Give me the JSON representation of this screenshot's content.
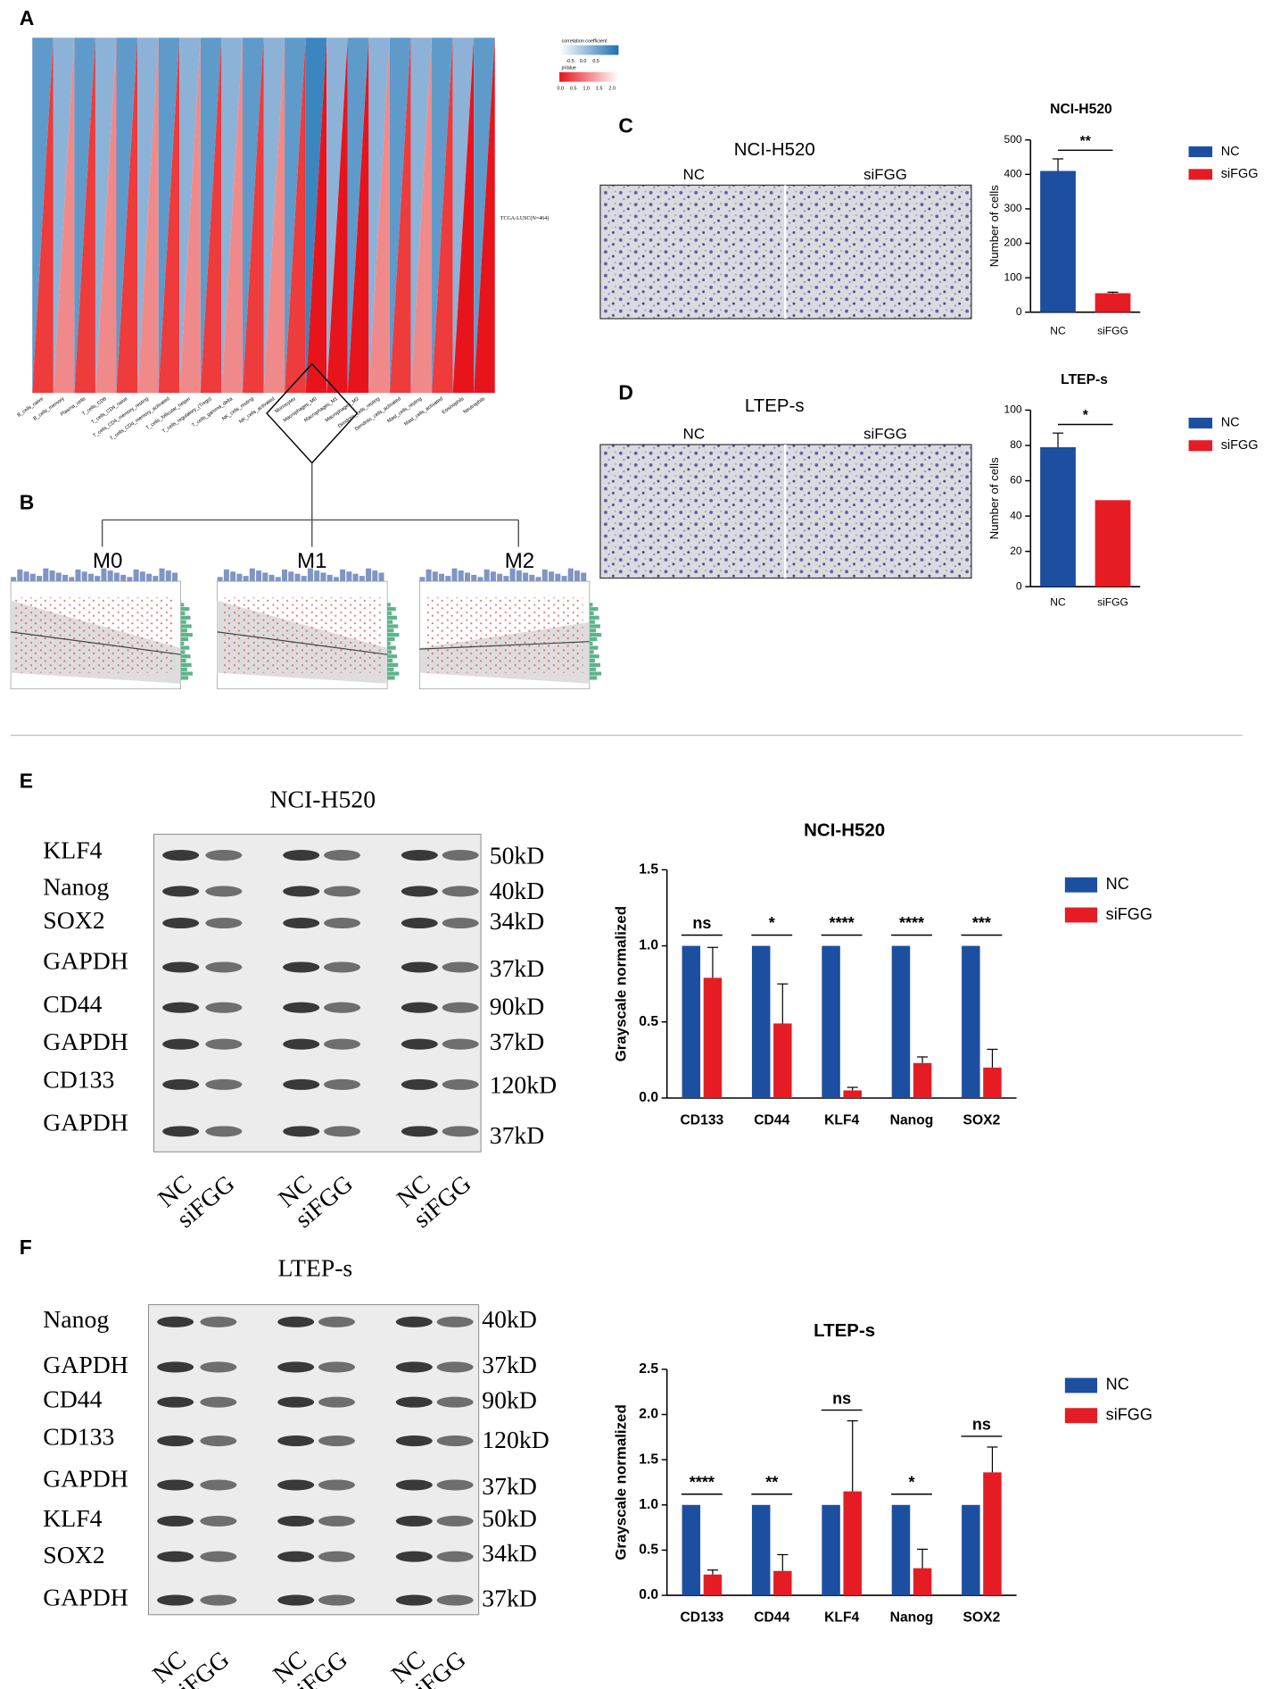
{
  "panel_labels": [
    "A",
    "B",
    "C",
    "D",
    "E",
    "F"
  ],
  "heatmap": {
    "cells": [
      "B_cells_naive",
      "B_cells_memory",
      "Plasma_cells",
      "T_cells_CD8",
      "T_cells_CD4_naive",
      "T_cells_CD4_memory_resting",
      "T_cells_CD4_memory_activated",
      "T_cells_follicular_helper",
      "T_cells_regulatory_(Tregs)",
      "T_cells_gamma_delta",
      "NK_cells_resting",
      "NK_cells_activated",
      "Monocytes",
      "Macrophages_M0",
      "Macrophages_M1",
      "Macrophages_M2",
      "Dendritic_cells_resting",
      "Dendritic_cells_activated",
      "Mast_cells_resting",
      "Mast_cells_activated",
      "Eosinophils",
      "Neutrophils"
    ],
    "upper_colors": [
      "#5e9bcb",
      "#8db2d8",
      "#5e9bcb",
      "#8db2d8",
      "#5e9bcb",
      "#8db2d8",
      "#5e9bcb",
      "#8db2d8",
      "#5e9bcb",
      "#8db2d8",
      "#5e9bcb",
      "#8db2d8",
      "#5e9bcb",
      "#3c86c0",
      "#8db2d8",
      "#5e9bcb",
      "#8db2d8",
      "#5e9bcb",
      "#8db2d8",
      "#5e9bcb",
      "#8db2d8",
      "#5e9bcb"
    ],
    "lower_colors": [
      "#ee3b3b",
      "#f08a8a",
      "#ee3b3b",
      "#f08a8a",
      "#ee3b3b",
      "#f08a8a",
      "#ee3b3b",
      "#f08a8a",
      "#ee3b3b",
      "#f08a8a",
      "#ee3b3b",
      "#f08a8a",
      "#ee3b3b",
      "#e8141c",
      "#e8141c",
      "#e8141c",
      "#f08a8a",
      "#ee3b3b",
      "#f08a8a",
      "#ee3b3b",
      "#e8141c",
      "#e8141c"
    ],
    "corr_title": "correlation coefficient",
    "corr_ticks": [
      -0.5,
      {
        "value": 0,
        "label": "0.0"
      },
      0.5
    ],
    "p_title": "pValue",
    "p_ticks": [
      {
        "value": 0,
        "label": "0.0"
      },
      0.5,
      {
        "value": 1,
        "label": "1.0"
      },
      1.5,
      {
        "value": 2,
        "label": "2.0"
      }
    ],
    "cohort": "TCGA-LUSC(N=464)"
  },
  "scatter_panels": [
    "M0",
    "M1",
    "M2"
  ],
  "migration": [
    {
      "title": "NCI-H520",
      "conditions": [
        "NC",
        "siFGG"
      ]
    },
    {
      "title": "LTEP-s",
      "conditions": [
        "NC",
        "siFGG"
      ]
    }
  ],
  "blots": [
    {
      "title": "NCI-H520",
      "proteins": [
        "KLF4",
        "Nanog",
        "SOX2",
        "GAPDH",
        "CD44",
        "GAPDH",
        "CD133",
        "GAPDH"
      ],
      "sizes": [
        "50kD",
        "40kD",
        "34kD",
        "37kD",
        "90kD",
        "37kD",
        "120kD",
        "37kD"
      ],
      "lanes": [
        "NC",
        "siFGG",
        "NC",
        "siFGG",
        "NC",
        "siFGG"
      ]
    },
    {
      "title": "LTEP-s",
      "proteins": [
        "Nanog",
        "GAPDH",
        "CD44",
        "CD133",
        "GAPDH",
        "KLF4",
        "SOX2",
        "GAPDH"
      ],
      "sizes": [
        "40kD",
        "37kD",
        "90kD",
        "120kD",
        "37kD",
        "50kD",
        "34kD",
        "37kD"
      ],
      "lanes": [
        "NC",
        "siFGG",
        "NC",
        "siFGG",
        "NC",
        "siFGG"
      ]
    }
  ],
  "chart_data": [
    {
      "type": "bar",
      "title": "NCI-H520",
      "ylabel": "Number of cells",
      "categories": [
        "NC",
        "siFGG"
      ],
      "colors": [
        "#1d4fa0",
        "#e51c23"
      ],
      "values": [
        410,
        55
      ],
      "errors": [
        35,
        3
      ],
      "ylim": [
        0,
        500
      ],
      "yticks": [
        0,
        100,
        200,
        300,
        400,
        500
      ],
      "significance": "**"
    },
    {
      "type": "bar",
      "title": "LTEP-s",
      "ylabel": "Number of cells",
      "categories": [
        "NC",
        "siFGG"
      ],
      "colors": [
        "#1d4fa0",
        "#e51c23"
      ],
      "values": [
        79,
        49
      ],
      "errors": [
        8,
        0
      ],
      "ylim": [
        0,
        100
      ],
      "yticks": [
        0,
        20,
        40,
        60,
        80,
        100
      ],
      "significance": "*"
    },
    {
      "type": "grouped_bar",
      "title": "NCI-H520",
      "ylabel": "Grayscale normalized",
      "categories": [
        "CD133",
        "CD44",
        "KLF4",
        "Nanog",
        "SOX2"
      ],
      "series": [
        {
          "name": "NC",
          "color": "#1d4fa0",
          "values": [
            1,
            1,
            1,
            1,
            1
          ]
        },
        {
          "name": "siFGG",
          "color": "#e51c23",
          "values": [
            0.79,
            0.49,
            0.05,
            0.23,
            0.2
          ],
          "errors": [
            0.2,
            0.26,
            0.02,
            0.04,
            0.12
          ]
        }
      ],
      "ylim": [
        0,
        1.5
      ],
      "yticks": [
        {
          "value": 0,
          "label": "0.0"
        },
        0.5,
        {
          "value": 1,
          "label": "1.0"
        },
        1.5
      ],
      "significance": [
        "ns",
        "*",
        "****",
        "****",
        "***"
      ]
    },
    {
      "type": "grouped_bar",
      "title": "LTEP-s",
      "ylabel": "Grayscale normalized",
      "categories": [
        "CD133",
        "CD44",
        "KLF4",
        "Nanog",
        "SOX2"
      ],
      "series": [
        {
          "name": "NC",
          "color": "#1d4fa0",
          "values": [
            1,
            1,
            1,
            1,
            1
          ]
        },
        {
          "name": "siFGG",
          "color": "#e51c23",
          "values": [
            0.23,
            0.27,
            1.15,
            0.3,
            1.36
          ],
          "errors": [
            0.05,
            0.18,
            0.78,
            0.21,
            0.28
          ]
        }
      ],
      "ylim": [
        0,
        2.5
      ],
      "yticks": [
        {
          "value": 0,
          "label": "0.0"
        },
        0.5,
        {
          "value": 1,
          "label": "1.0"
        },
        1.5,
        {
          "value": 2,
          "label": "2.0"
        },
        2.5
      ],
      "significance": [
        "****",
        "**",
        "ns",
        "*",
        "ns"
      ]
    }
  ]
}
